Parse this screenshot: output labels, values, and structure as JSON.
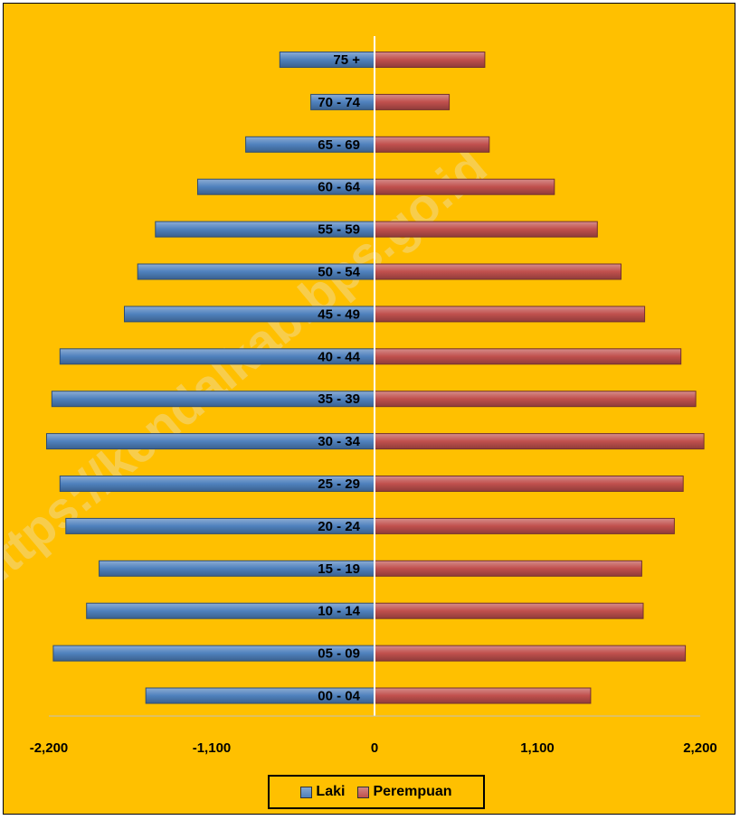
{
  "chart_data": {
    "type": "bar",
    "orientation": "horizontal",
    "layout": "population-pyramid",
    "categories": [
      "00 - 04",
      "05 - 09",
      "10 - 14",
      "15 - 19",
      "20 - 24",
      "25 - 29",
      "30 - 34",
      "35 - 39",
      "40 - 44",
      "45 - 49",
      "50 - 54",
      "55 - 59",
      "60 - 64",
      "65 - 69",
      "70 - 74",
      "75 +"
    ],
    "series": [
      {
        "name": "Laki",
        "color": "#4F81BD",
        "values": [
          -1545,
          -2170,
          -1945,
          -1860,
          -2085,
          -2125,
          -2215,
          -2180,
          -2125,
          -1690,
          -1600,
          -1480,
          -1195,
          -870,
          -430,
          -640
        ]
      },
      {
        "name": "Perempuan",
        "color": "#C0504D",
        "values": [
          1460,
          2100,
          1815,
          1805,
          2025,
          2085,
          2225,
          2170,
          2070,
          1825,
          1665,
          1505,
          1215,
          775,
          505,
          745
        ]
      }
    ],
    "xlim": [
      -2200,
      2200
    ],
    "xticks": [
      -2200,
      -1100,
      0,
      1100,
      2200
    ],
    "xtick_labels": [
      "-2,200",
      "-1,100",
      "0",
      "1,100",
      "2,200"
    ],
    "grid": false,
    "legend": "bottom",
    "watermark": "https://kendalkab.bps.go.id"
  }
}
